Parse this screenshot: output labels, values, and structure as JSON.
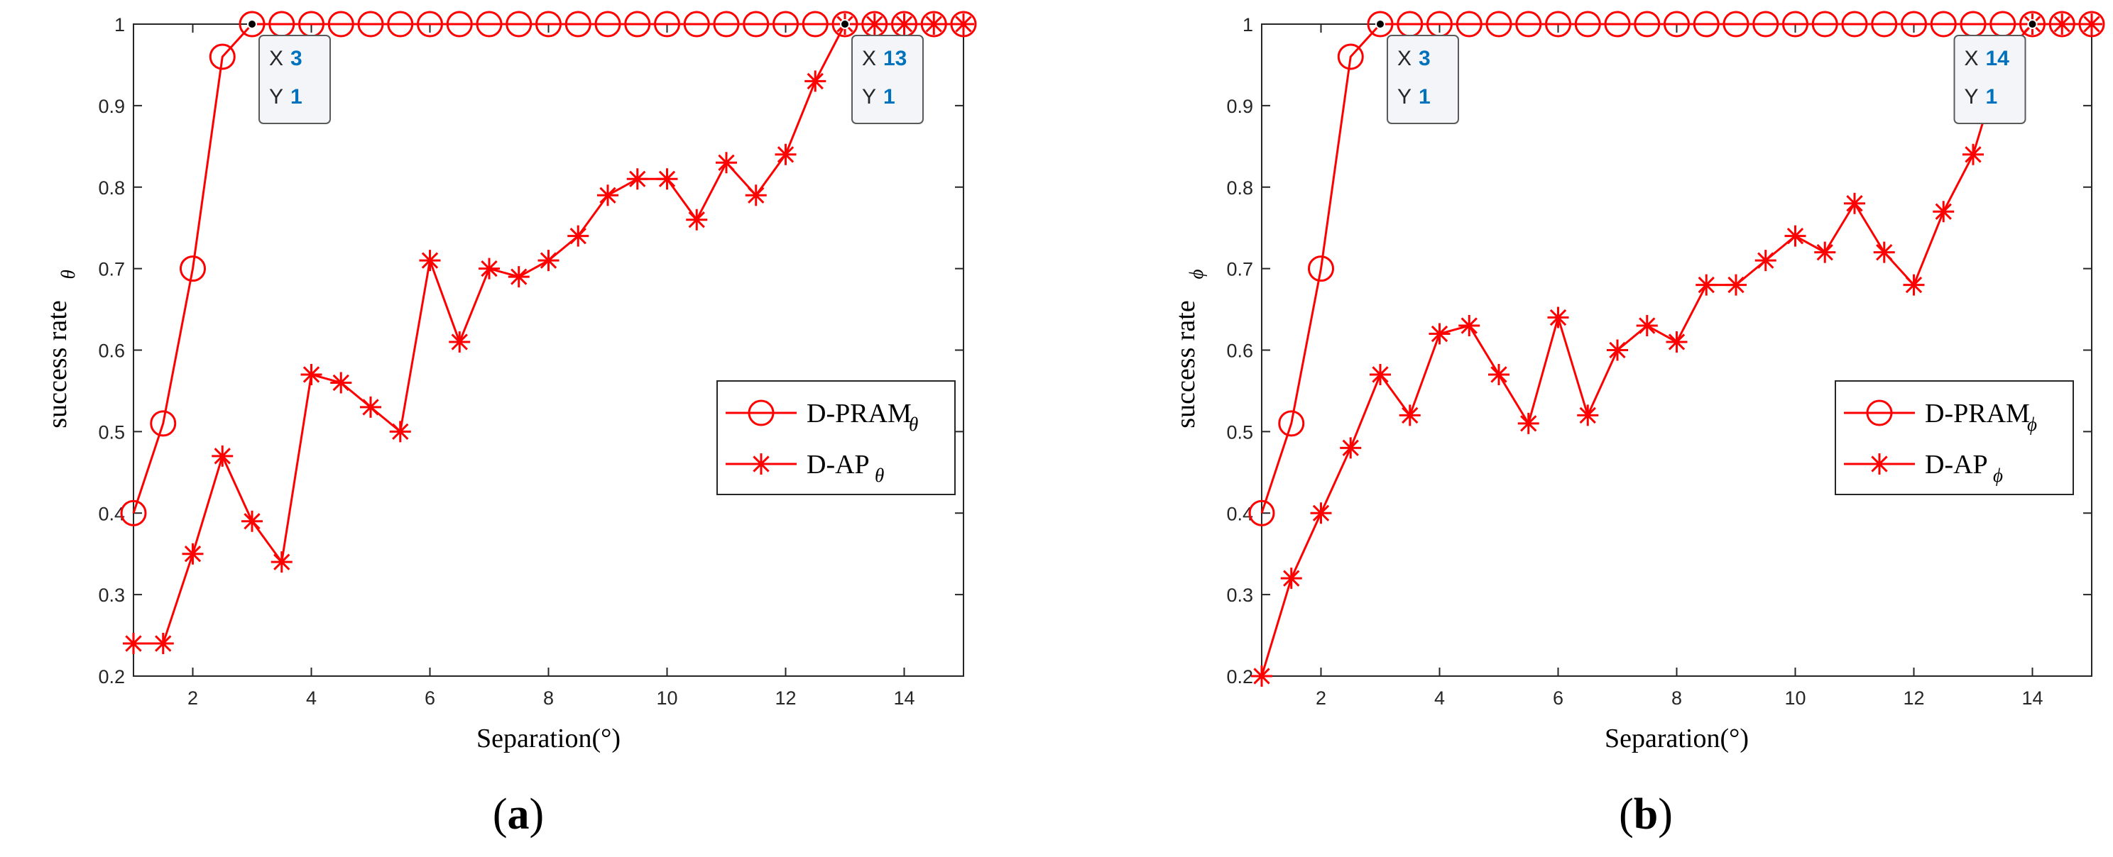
{
  "colors": {
    "series": "#ff0000",
    "axis": "#262626",
    "tipKey": "#262626",
    "tipValue": "#0072bd",
    "tipBackground": "#f3f5f9",
    "tipBorder": "#5a5a5a"
  },
  "chart_data": [
    {
      "type": "line",
      "panel_label": "a",
      "xlabel": "Separation(°)",
      "ylabel": "success rate",
      "ylabel_subscript": "θ",
      "xlim": [
        1,
        15
      ],
      "ylim": [
        0.2,
        1
      ],
      "xticks": [
        2,
        4,
        6,
        8,
        10,
        12,
        14
      ],
      "yticks": [
        0.2,
        0.3,
        0.4,
        0.5,
        0.6,
        0.7,
        0.8,
        0.9,
        1
      ],
      "ytick_labels": [
        "0.2",
        "0.3",
        "0.4",
        "0.5",
        "0.6",
        "0.7",
        "0.8",
        "0.9",
        "1"
      ],
      "legend_position": "right-middle",
      "x": [
        1,
        1.5,
        2,
        2.5,
        3,
        3.5,
        4,
        4.5,
        5,
        5.5,
        6,
        6.5,
        7,
        7.5,
        8,
        8.5,
        9,
        9.5,
        10,
        10.5,
        11,
        11.5,
        12,
        12.5,
        13,
        13.5,
        14,
        14.5,
        15
      ],
      "series": [
        {
          "name": "D-PRAM",
          "subscript": "θ",
          "marker": "circle",
          "values": [
            0.4,
            0.51,
            0.7,
            0.96,
            1,
            1,
            1,
            1,
            1,
            1,
            1,
            1,
            1,
            1,
            1,
            1,
            1,
            1,
            1,
            1,
            1,
            1,
            1,
            1,
            1,
            1,
            1,
            1,
            1
          ]
        },
        {
          "name": "D-AP",
          "subscript": "θ",
          "marker": "asterisk",
          "values": [
            0.24,
            0.24,
            0.35,
            0.47,
            0.39,
            0.34,
            0.57,
            0.56,
            0.53,
            0.5,
            0.71,
            0.61,
            0.7,
            0.69,
            0.71,
            0.74,
            0.79,
            0.81,
            0.81,
            0.76,
            0.83,
            0.79,
            0.84,
            0.93,
            1,
            1,
            1,
            1,
            1
          ]
        }
      ],
      "datatips": [
        {
          "x": 3,
          "y": 1,
          "x_key": "X",
          "y_key": "Y",
          "x_text": "3",
          "y_text": "1"
        },
        {
          "x": 13,
          "y": 1,
          "x_key": "X",
          "y_key": "Y",
          "x_text": "13",
          "y_text": "1"
        }
      ]
    },
    {
      "type": "line",
      "panel_label": "b",
      "xlabel": "Separation(°)",
      "ylabel": "success rate",
      "ylabel_subscript": "ϕ",
      "xlim": [
        1,
        15
      ],
      "ylim": [
        0.2,
        1
      ],
      "xticks": [
        2,
        4,
        6,
        8,
        10,
        12,
        14
      ],
      "yticks": [
        0.2,
        0.3,
        0.4,
        0.5,
        0.6,
        0.7,
        0.8,
        0.9,
        1
      ],
      "ytick_labels": [
        "0.2",
        "0.3",
        "0.4",
        "0.5",
        "0.6",
        "0.7",
        "0.8",
        "0.9",
        "1"
      ],
      "legend_position": "right-middle",
      "x": [
        1,
        1.5,
        2,
        2.5,
        3,
        3.5,
        4,
        4.5,
        5,
        5.5,
        6,
        6.5,
        7,
        7.5,
        8,
        8.5,
        9,
        9.5,
        10,
        10.5,
        11,
        11.5,
        12,
        12.5,
        13,
        13.5,
        14,
        14.5,
        15
      ],
      "series": [
        {
          "name": "D-PRAM",
          "subscript": "ϕ",
          "marker": "circle",
          "values": [
            0.4,
            0.51,
            0.7,
            0.96,
            1,
            1,
            1,
            1,
            1,
            1,
            1,
            1,
            1,
            1,
            1,
            1,
            1,
            1,
            1,
            1,
            1,
            1,
            1,
            1,
            1,
            1,
            1,
            1,
            1
          ]
        },
        {
          "name": "D-AP",
          "subscript": "ϕ",
          "marker": "asterisk",
          "values": [
            0.2,
            0.32,
            0.4,
            0.48,
            0.57,
            0.52,
            0.62,
            0.63,
            0.57,
            0.51,
            0.64,
            0.52,
            0.6,
            0.63,
            0.61,
            0.68,
            0.68,
            0.71,
            0.74,
            0.72,
            0.78,
            0.72,
            0.68,
            0.77,
            0.84,
            0.96,
            1,
            1,
            1
          ]
        }
      ],
      "datatips": [
        {
          "x": 3,
          "y": 1,
          "x_key": "X",
          "y_key": "Y",
          "x_text": "3",
          "y_text": "1"
        },
        {
          "x": 14,
          "y": 1,
          "x_key": "X",
          "y_key": "Y",
          "x_text": "14",
          "y_text": "1"
        }
      ]
    }
  ]
}
